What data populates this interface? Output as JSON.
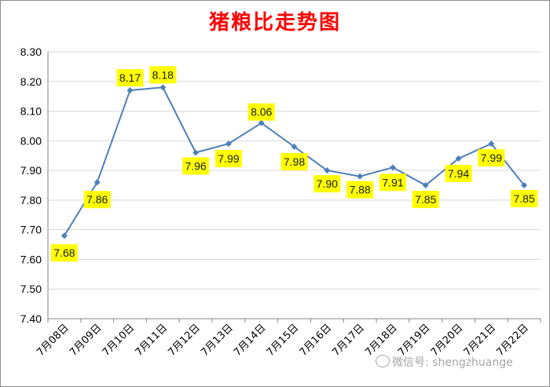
{
  "chart_data": {
    "type": "line",
    "title": "猪粮比走势图",
    "categories": [
      "7月08日",
      "7月09日",
      "7月10日",
      "7月11日",
      "7月12日",
      "7月13日",
      "7月14日",
      "7月15日",
      "7月16日",
      "7月17日",
      "7月18日",
      "7月19日",
      "7月20日",
      "7月21日",
      "7月22日"
    ],
    "series": [
      {
        "values": [
          7.68,
          7.86,
          8.17,
          8.18,
          7.96,
          7.99,
          8.06,
          7.98,
          7.9,
          7.88,
          7.91,
          7.85,
          7.94,
          7.99,
          7.85
        ]
      }
    ],
    "data_labels": [
      "7.68",
      "7.86",
      "8.17",
      "8.18",
      "7.96",
      "7.99",
      "8.06",
      "7.98",
      "7.90",
      "7.88",
      "7.91",
      "7.85",
      "7.94",
      "7.99",
      "7.85"
    ],
    "yticks": [
      "7.40",
      "7.50",
      "7.60",
      "7.70",
      "7.80",
      "7.90",
      "8.00",
      "8.10",
      "8.20",
      "8.30"
    ],
    "ylim": [
      7.4,
      8.3
    ],
    "grid": true,
    "legend": "none",
    "colors": {
      "line": "#4f7fba",
      "label_bg": "#ffff00",
      "title": "#ff0000",
      "grid": "#d9d9d9"
    }
  },
  "watermark": {
    "text": "微信号: shengzhuange",
    "icon": "wechat-icon"
  }
}
